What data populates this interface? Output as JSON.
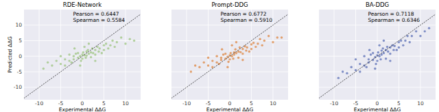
{
  "chart_data": [
    {
      "type": "scatter",
      "title": "RDE-Network",
      "x_label": "Experimental ΔΔG",
      "y_label": "Predicted ΔΔG",
      "annotations": [
        "Pearson = 0.6447",
        "Spearman = 0.5584"
      ],
      "color": "#9cc47f",
      "grid": true,
      "xlim": [
        -13.5,
        13.5
      ],
      "ylim": [
        -14,
        15
      ],
      "xticks": [
        -10,
        -5,
        0,
        5,
        10
      ],
      "yticks": [
        -10,
        -5,
        0,
        5,
        10
      ],
      "x": [
        -9,
        -8,
        -7,
        -6,
        -5,
        -5,
        -4,
        -4,
        -3,
        -3,
        -2.5,
        -2,
        -2,
        -1.5,
        -1,
        -1,
        -0.5,
        -0.3,
        0,
        0,
        0.2,
        0.5,
        0.8,
        1,
        1,
        1.3,
        1.5,
        2,
        2,
        2.3,
        2.5,
        3,
        3,
        3.5,
        3.8,
        4,
        4.5,
        5,
        5,
        5.5,
        6,
        6.5,
        7,
        7.5,
        8,
        9,
        10,
        11,
        12,
        -1.8,
        0.5,
        3,
        1.5,
        -0.5
      ],
      "values": [
        -4,
        -2,
        -3,
        -1.5,
        -2.5,
        0,
        -1,
        -3,
        -1.5,
        0.5,
        -2,
        0,
        -1,
        0.8,
        -0.5,
        1,
        0,
        -1.5,
        0.5,
        -0.8,
        1.2,
        0.3,
        -0.5,
        1.5,
        0.2,
        2,
        0.8,
        1.2,
        -0.3,
        2.5,
        1,
        2,
        0.5,
        3,
        1.5,
        2.5,
        1,
        3.5,
        2,
        4,
        2.5,
        3.5,
        5,
        3,
        4.5,
        6,
        4,
        5.5,
        5,
        2.5,
        3,
        -1.5,
        4,
        -3
      ]
    },
    {
      "type": "scatter",
      "title": "Prompt-DDG",
      "x_label": "Experimental ΔΔG",
      "annotations": [
        "Pearson = 0.6772",
        "Spearman = 0.5910"
      ],
      "color": "#dd8640",
      "grid": true,
      "tick_labels": "x",
      "xlim": [
        -13.5,
        13.5
      ],
      "ylim": [
        -14,
        15
      ],
      "xticks": [
        -10,
        -5,
        0,
        5,
        10
      ],
      "yticks": [
        -10,
        -5,
        0,
        5,
        10
      ],
      "x": [
        -9,
        -8,
        -7,
        -6,
        -5,
        -5,
        -4,
        -4,
        -3,
        -3,
        -2.5,
        -2,
        -2,
        -1.5,
        -1,
        -1,
        -0.5,
        -0.3,
        0,
        0,
        0.2,
        0.5,
        0.8,
        1,
        1,
        1.3,
        1.5,
        2,
        2,
        2.3,
        2.5,
        3,
        3,
        3.5,
        3.8,
        4,
        4.5,
        5,
        5,
        5.5,
        6,
        6.5,
        7,
        7.5,
        8,
        9,
        10,
        11,
        12,
        -1.8,
        0.5,
        3,
        1.5,
        -0.5
      ],
      "values": [
        -5,
        -3,
        -3.5,
        -2,
        -3,
        -0.5,
        -1.5,
        -3.5,
        -2,
        0,
        -2.5,
        -0.5,
        -1.2,
        0.5,
        -0.8,
        0.8,
        -0.2,
        -1.8,
        0.3,
        -1,
        1,
        0,
        -0.8,
        1.2,
        0.5,
        2.2,
        1,
        1.5,
        -0.5,
        2.8,
        1.3,
        2.3,
        0.8,
        3.2,
        1.8,
        2.8,
        1.5,
        3.8,
        2.3,
        4.3,
        3,
        4,
        5.5,
        3.5,
        5,
        6.5,
        4.5,
        6,
        6,
        2.2,
        3.5,
        -1.2,
        4.5,
        -3.5
      ]
    },
    {
      "type": "scatter",
      "title": "BA-DDG",
      "x_label": "Experimental ΔΔG",
      "annotations": [
        "Pearson = 0.7118",
        "Spearman = 0.6346"
      ],
      "color": "#5a6db5",
      "grid": true,
      "tick_labels": "x",
      "xlim": [
        -13.5,
        13.5
      ],
      "ylim": [
        -14,
        15
      ],
      "xticks": [
        -10,
        -5,
        0,
        5,
        10
      ],
      "yticks": [
        -10,
        -5,
        0,
        5,
        10
      ],
      "x": [
        -9,
        -8,
        -7,
        -6,
        -5,
        -5,
        -4,
        -4,
        -3,
        -3,
        -2.5,
        -2,
        -2,
        -1.5,
        -1,
        -1,
        -0.5,
        -0.3,
        0,
        0,
        0.2,
        0.5,
        0.8,
        1,
        1,
        1.3,
        1.5,
        2,
        2,
        2.3,
        2.5,
        3,
        3,
        3.5,
        3.8,
        4,
        4.5,
        5,
        5,
        5.5,
        6,
        6.5,
        7,
        7.5,
        8,
        9,
        10,
        11,
        12,
        -1.8,
        0.5,
        3,
        1.5,
        -0.5
      ],
      "values": [
        -7,
        -5,
        -5.5,
        -3.5,
        -4.5,
        -1,
        -2.5,
        -5,
        -3,
        0,
        -3.5,
        -1,
        -2,
        0.5,
        -1.2,
        1,
        -0.3,
        -2.5,
        0.3,
        -1.5,
        1.2,
        0,
        -1,
        1.8,
        0.5,
        2.5,
        1,
        2,
        -0.8,
        3,
        1.5,
        2.8,
        0.8,
        3.5,
        2,
        3.3,
        2,
        4.5,
        2.8,
        5,
        3.5,
        5,
        6.5,
        4.5,
        6.5,
        8,
        6.5,
        8,
        9,
        2,
        3.5,
        -1.5,
        5,
        -4
      ]
    }
  ]
}
